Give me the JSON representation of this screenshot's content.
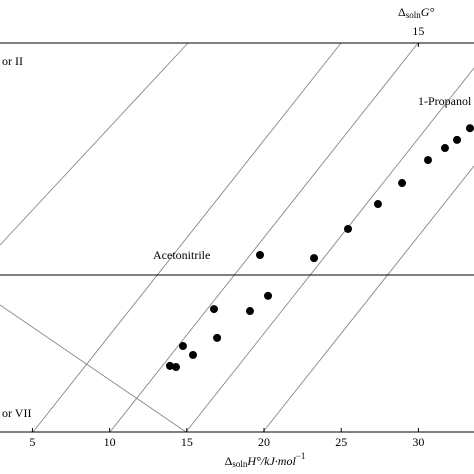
{
  "chart_data": {
    "type": "scatter",
    "xlabel": [
      "Δ",
      "soln",
      "H°/kJ·mol",
      "−1"
    ],
    "x2label": [
      "Δ",
      "soln",
      "G°"
    ],
    "xlim": [
      2.9,
      33.6
    ],
    "xticks": [
      5,
      10,
      15,
      20,
      25,
      30
    ],
    "x2lim": [
      -12.1,
      18.6
    ],
    "x2ticks": [
      15
    ],
    "ylim": [
      0,
      100
    ],
    "color": "#000000",
    "annotations": [
      "or II",
      "1-Propanol",
      "Acetonitrile",
      "or VII"
    ],
    "x": [
      13.91,
      14.3,
      14.75,
      15.4,
      16.96,
      16.76,
      19.09,
      20.26,
      19.74,
      23.24,
      25.44,
      27.38,
      28.94,
      30.62,
      31.72,
      32.5,
      33.34
    ],
    "values": [
      17.0,
      16.7,
      22.1,
      19.8,
      24.2,
      31.6,
      31.1,
      35.0,
      45.5,
      44.7,
      52.2,
      58.6,
      64.0,
      69.9,
      73.0,
      75.1,
      78.1
    ]
  }
}
